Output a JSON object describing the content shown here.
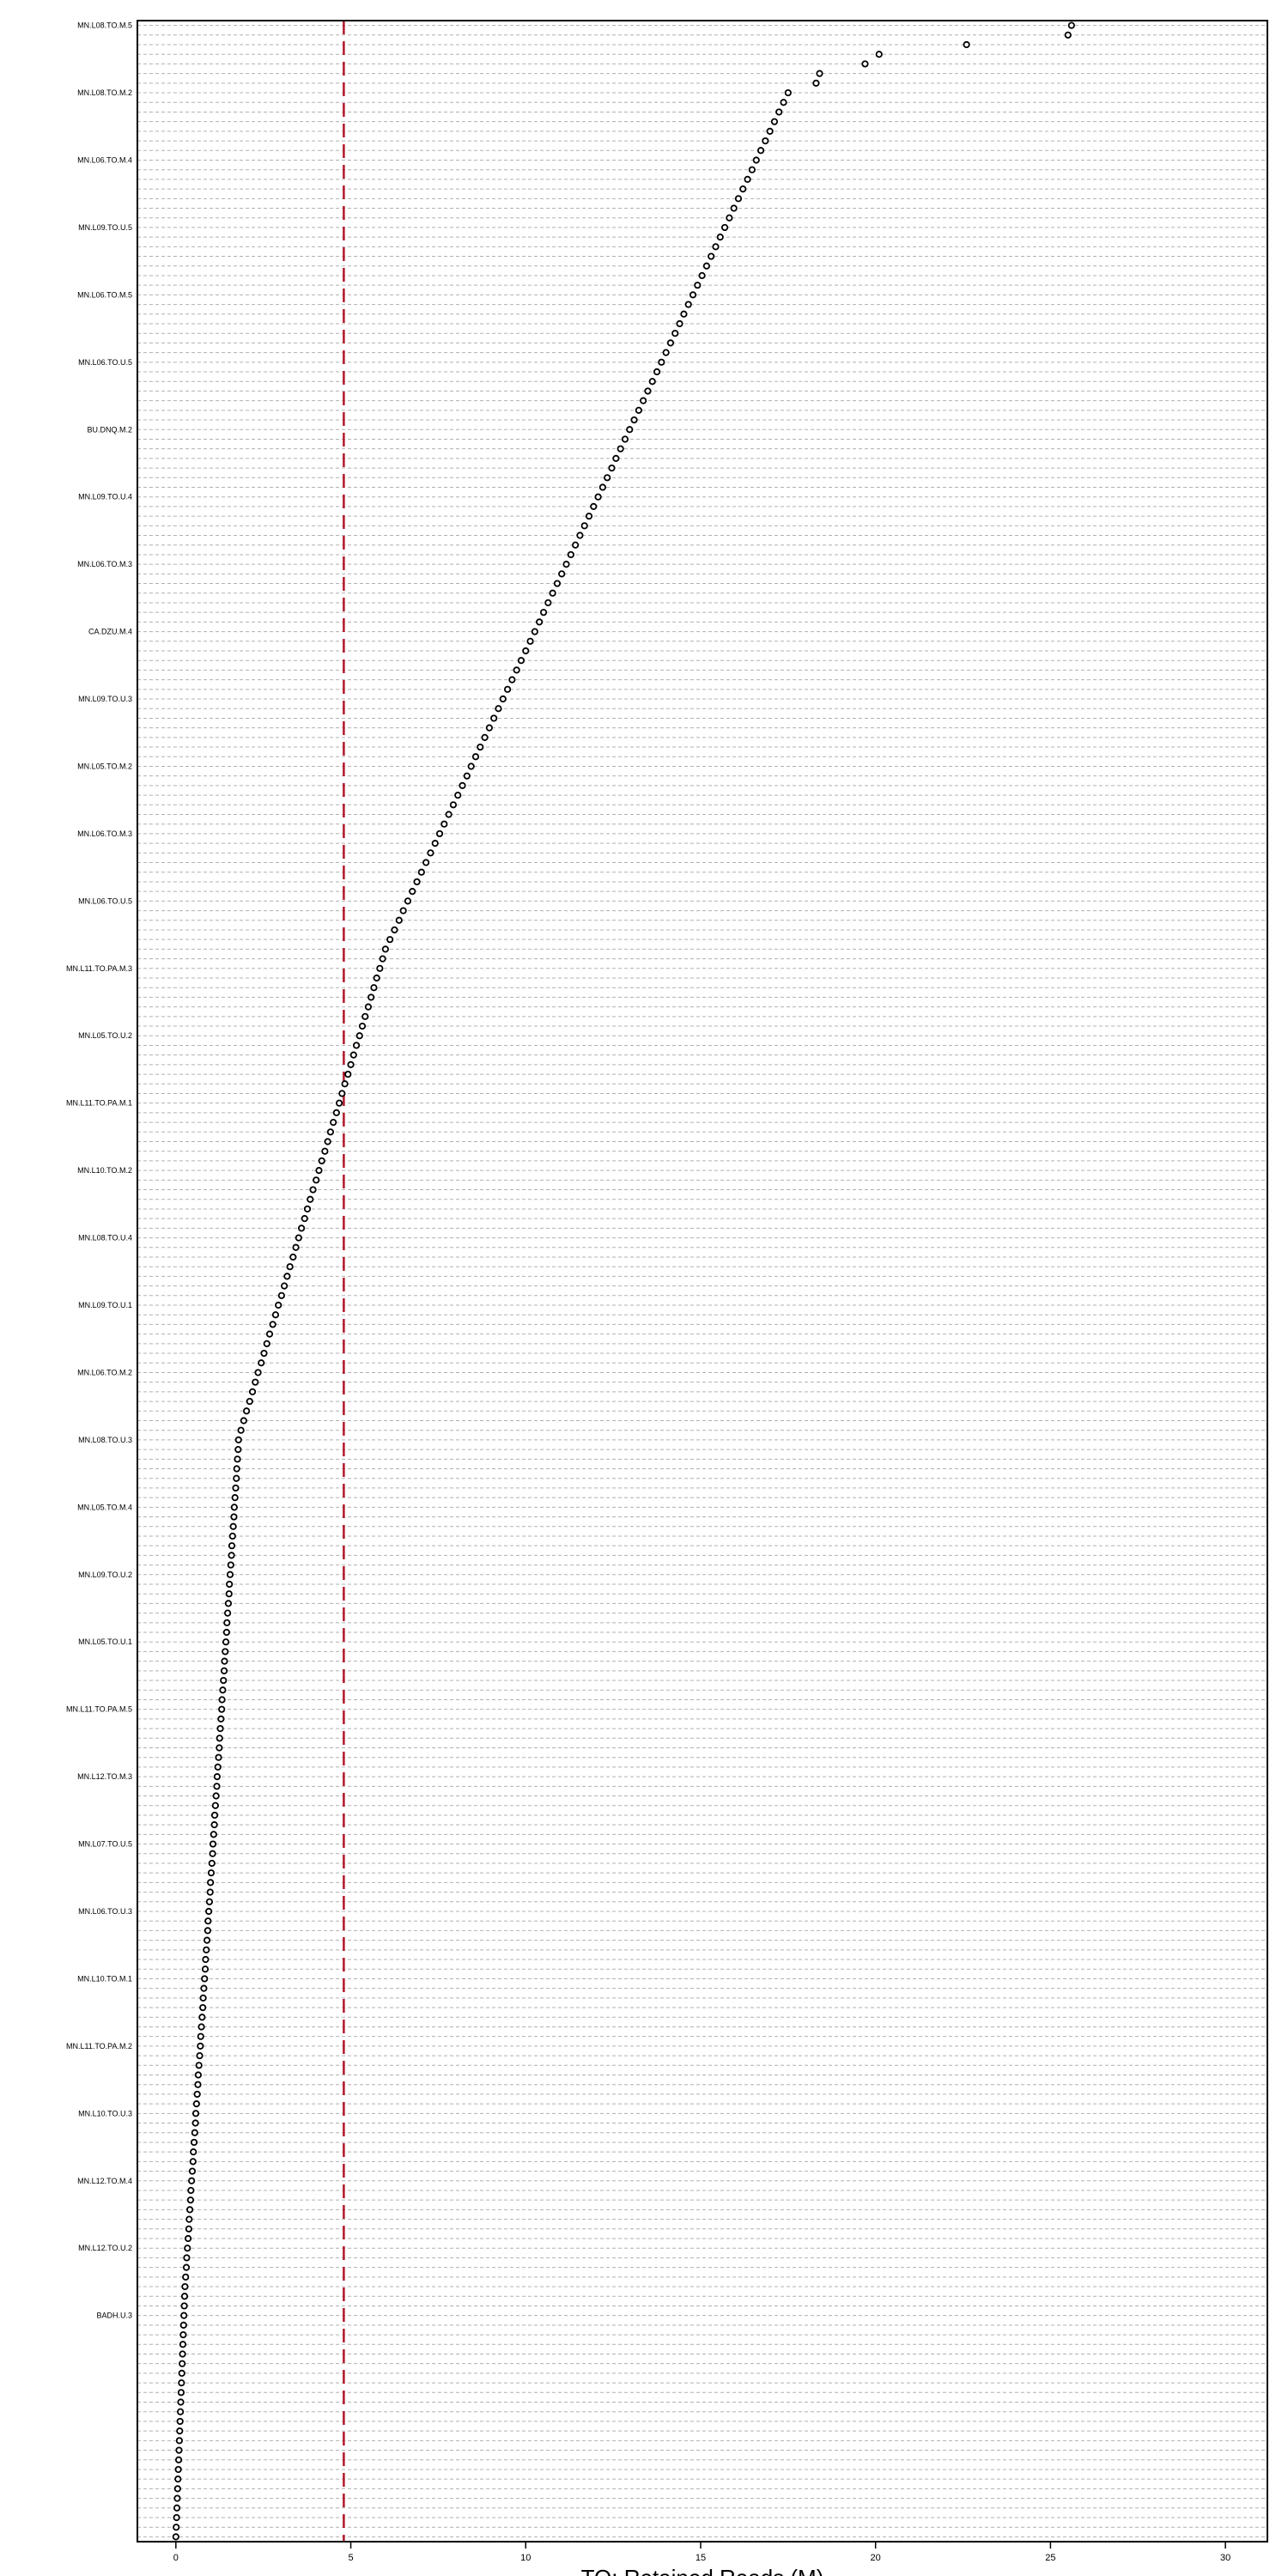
{
  "chart_data": {
    "type": "scatter",
    "title": "",
    "xlabel": "TO: Retained Reads (M)",
    "ylabel": "",
    "xlim": [
      -1.1,
      31.2
    ],
    "xticks": [
      0,
      5,
      10,
      15,
      20,
      25,
      30
    ],
    "grid": "horizontal dashed",
    "legend": "none",
    "reference_line": {
      "x": 4.8,
      "color": "#b2182b",
      "style": "dashed"
    },
    "colors": {
      "points": "#000000",
      "grid": "#b0b0b0",
      "reference_line": "#b2182b"
    },
    "visible_labels": [
      "MN.L08.TO.M.5",
      "MN.L08.TO.M.2",
      "MN.L06.TO.M.4",
      "MN.L09.TO.U.5",
      "MN.L06.TO.M.5",
      "MN.L06.TO.U.5",
      "BU.DNQ.M.2",
      "MN.L09.TO.U.4",
      "MN.L06.TO.M.3",
      "CA.DZU.M.4",
      "MN.L09.TO.U.3",
      "MN.L05.TO.M.2",
      "MN.L06.TO.M.3",
      "MN.L06.TO.U.5",
      "MN.L11.TO.PA.M.3",
      "MN.L05.TO.U.2",
      "MN.L11.TO.PA.M.1",
      "MN.L10.TO.M.2",
      "MN.L08.TO.U.4",
      "MN.L09.TO.U.1",
      "MN.L06.TO.M.2",
      "MN.L08.TO.U.3",
      "MN.L05.TO.M.4",
      "MN.L09.TO.U.2",
      "MN.L05.TO.U.1",
      "MN.L11.TO.PA.M.5",
      "MN.L12.TO.M.3",
      "MN.L07.TO.U.5",
      "MN.L06.TO.U.3",
      "MN.L10.TO.M.1",
      "MN.L11.TO.PA.M.2",
      "MN.L10.TO.U.3",
      "MN.L12.TO.M.4",
      "MN.L12.TO.U.2",
      "BADH.U.3"
    ],
    "n_points": 262,
    "summary_values": {
      "max": 25.6,
      "top_values": [
        25.6,
        25.5,
        22.6,
        20.1,
        19.7,
        18.4,
        18.3
      ]
    }
  }
}
